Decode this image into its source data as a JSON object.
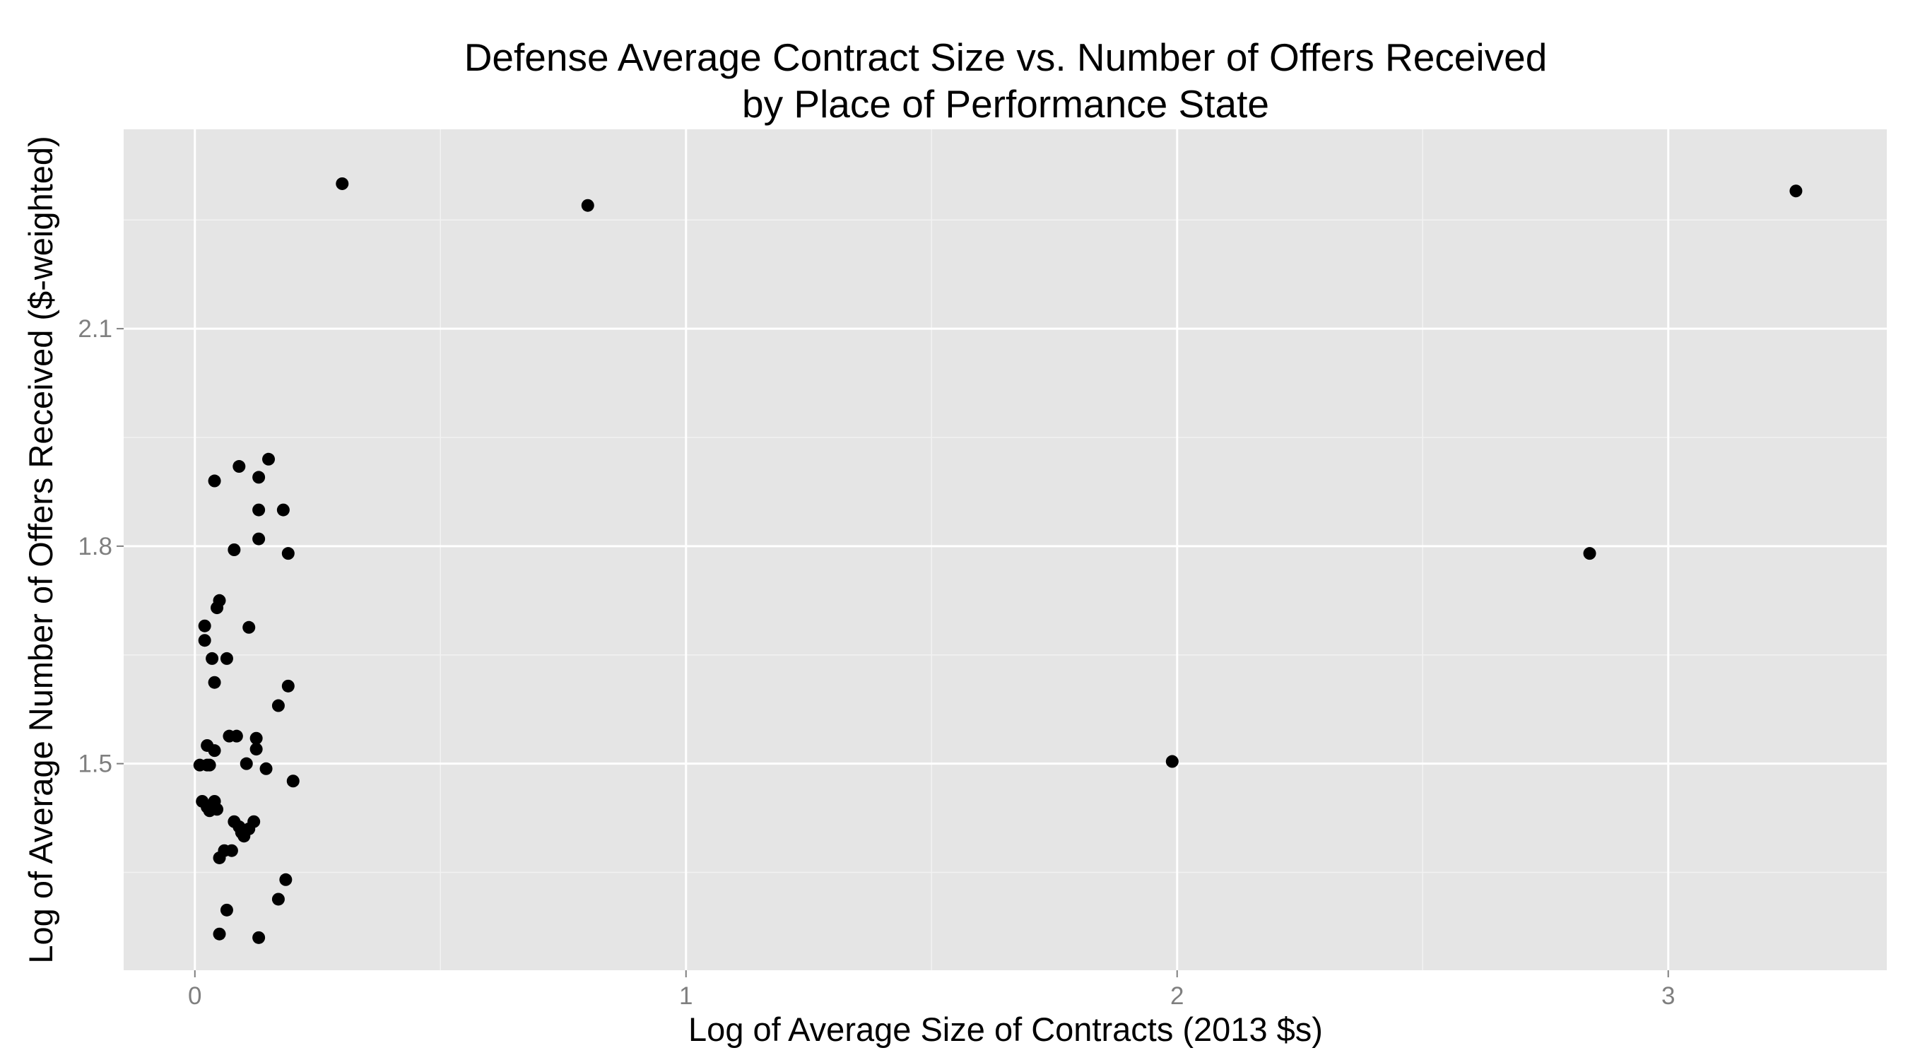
{
  "chart_data": {
    "type": "scatter",
    "title": "Defense Average Contract Size vs. Number of Offers Received",
    "subtitle": "by Place of Performance State",
    "xlabel": "Log of Average Size of Contracts (2013 $s)",
    "ylabel": "Log of Average Number of Offers Received ($-weighted)",
    "xlim": [
      -0.145,
      3.445
    ],
    "ylim": [
      1.215,
      2.375
    ],
    "x_ticks": [
      0,
      1,
      2,
      3
    ],
    "x_tick_labels": [
      "0",
      "1",
      "2",
      "3"
    ],
    "y_ticks": [
      1.5,
      1.8,
      2.1
    ],
    "y_tick_labels": [
      "1.5",
      "1.8",
      "2.1"
    ],
    "grid": true,
    "background": "#e5e5e5",
    "grid_color": "#ffffff",
    "point_color": "#000000",
    "series": [
      {
        "points": [
          {
            "x": 0.3,
            "y": 2.3
          },
          {
            "x": 0.8,
            "y": 2.27
          },
          {
            "x": 3.26,
            "y": 2.29
          },
          {
            "x": 0.15,
            "y": 1.92
          },
          {
            "x": 0.09,
            "y": 1.91
          },
          {
            "x": 0.04,
            "y": 1.89
          },
          {
            "x": 0.13,
            "y": 1.895
          },
          {
            "x": 0.13,
            "y": 1.85
          },
          {
            "x": 0.18,
            "y": 1.85
          },
          {
            "x": 0.13,
            "y": 1.81
          },
          {
            "x": 0.08,
            "y": 1.795
          },
          {
            "x": 0.19,
            "y": 1.79
          },
          {
            "x": 2.84,
            "y": 1.79
          },
          {
            "x": 0.05,
            "y": 1.725
          },
          {
            "x": 0.045,
            "y": 1.715
          },
          {
            "x": 0.02,
            "y": 1.69
          },
          {
            "x": 0.11,
            "y": 1.688
          },
          {
            "x": 0.02,
            "y": 1.67
          },
          {
            "x": 0.035,
            "y": 1.645
          },
          {
            "x": 0.065,
            "y": 1.645
          },
          {
            "x": 0.04,
            "y": 1.612
          },
          {
            "x": 0.19,
            "y": 1.607
          },
          {
            "x": 0.17,
            "y": 1.58
          },
          {
            "x": 0.07,
            "y": 1.538
          },
          {
            "x": 0.085,
            "y": 1.538
          },
          {
            "x": 0.125,
            "y": 1.535
          },
          {
            "x": 0.025,
            "y": 1.525
          },
          {
            "x": 0.04,
            "y": 1.518
          },
          {
            "x": 0.125,
            "y": 1.52
          },
          {
            "x": 0.01,
            "y": 1.498
          },
          {
            "x": 0.025,
            "y": 1.498
          },
          {
            "x": 0.03,
            "y": 1.498
          },
          {
            "x": 0.105,
            "y": 1.5
          },
          {
            "x": 0.145,
            "y": 1.493
          },
          {
            "x": 1.99,
            "y": 1.503
          },
          {
            "x": 0.2,
            "y": 1.476
          },
          {
            "x": 0.015,
            "y": 1.448
          },
          {
            "x": 0.04,
            "y": 1.448
          },
          {
            "x": 0.025,
            "y": 1.44
          },
          {
            "x": 0.03,
            "y": 1.435
          },
          {
            "x": 0.045,
            "y": 1.437
          },
          {
            "x": 0.08,
            "y": 1.42
          },
          {
            "x": 0.12,
            "y": 1.42
          },
          {
            "x": 0.09,
            "y": 1.413
          },
          {
            "x": 0.11,
            "y": 1.41
          },
          {
            "x": 0.095,
            "y": 1.405
          },
          {
            "x": 0.1,
            "y": 1.4
          },
          {
            "x": 0.06,
            "y": 1.38
          },
          {
            "x": 0.075,
            "y": 1.38
          },
          {
            "x": 0.05,
            "y": 1.37
          },
          {
            "x": 0.185,
            "y": 1.34
          },
          {
            "x": 0.17,
            "y": 1.313
          },
          {
            "x": 0.065,
            "y": 1.298
          },
          {
            "x": 0.05,
            "y": 1.265
          },
          {
            "x": 0.13,
            "y": 1.26
          }
        ]
      }
    ]
  }
}
